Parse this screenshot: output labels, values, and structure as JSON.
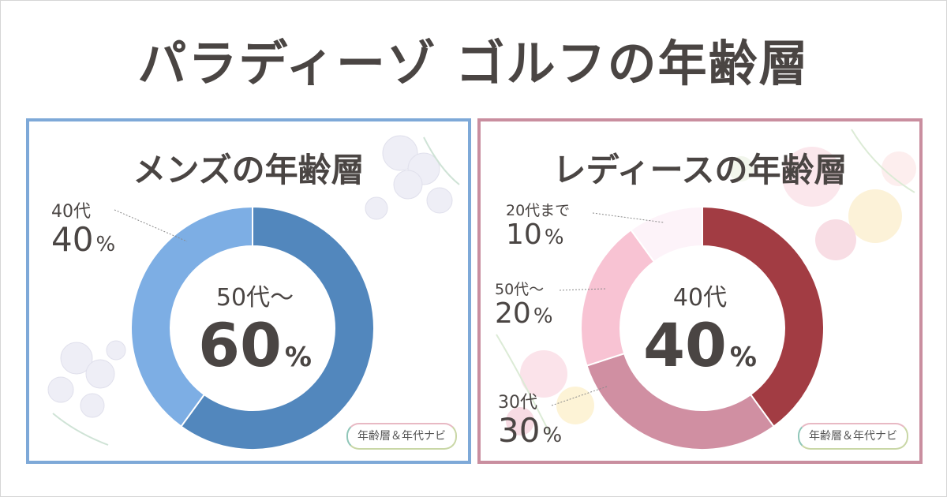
{
  "title": "パラディーゾ ゴルフの年齢層",
  "panels": {
    "mens": {
      "title": "メンズの年齢層",
      "center_category": "50代～",
      "center_value": "60",
      "badge": "年齢層＆年代ナビ",
      "ext_labels": [
        {
          "category": "40代",
          "value": "40"
        }
      ]
    },
    "ladies": {
      "title": "レディースの年齢層",
      "center_category": "40代",
      "center_value": "40",
      "badge": "年齢層＆年代ナビ",
      "ext_labels": [
        {
          "category": "20代まで",
          "value": "10"
        },
        {
          "category": "50代～",
          "value": "20"
        },
        {
          "category": "30代",
          "value": "30"
        }
      ]
    }
  },
  "percent_sign": "%",
  "colors": {
    "mens_border": "#7ea9d8",
    "ladies_border": "#c98e9f",
    "mens_50plus": "#5287bd",
    "mens_40s": "#7daee4",
    "ladies_40s": "#a23c43",
    "ladies_30s": "#d08fa2",
    "ladies_50plus": "#f8c3d3",
    "ladies_20s": "#fdf3f9"
  },
  "chart_data": [
    {
      "type": "pie",
      "categories": [
        "50代～",
        "40代"
      ],
      "values": [
        60,
        40
      ],
      "title": "メンズの年齢層"
    },
    {
      "type": "pie",
      "categories": [
        "40代",
        "30代",
        "50代～",
        "20代まで"
      ],
      "values": [
        40,
        30,
        20,
        10
      ],
      "title": "レディースの年齢層"
    }
  ]
}
